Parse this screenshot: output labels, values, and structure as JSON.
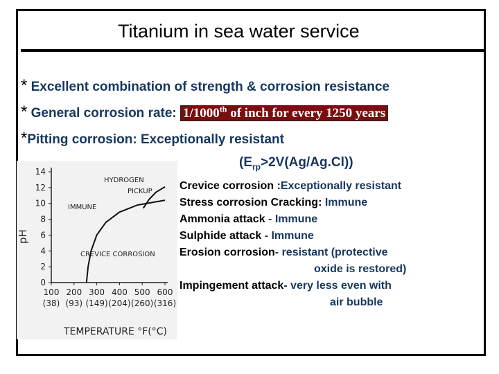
{
  "slide": {
    "title": "Titanium in sea water service",
    "bullets": [
      {
        "star": "*",
        "text": "Excellent  combination of strength & corrosion resistance"
      },
      {
        "star": "*",
        "text": "General corrosion rate:",
        "rate_main": "1/1000",
        "rate_sup": "th",
        "rate_rest": " of inch for every 1250 years"
      },
      {
        "star": "*",
        "text": "Pitting corrosion: Exceptionally resistant"
      }
    ],
    "erp": {
      "prefix": "(E",
      "sub": "rp",
      "suffix": ">2V(Ag/Ag.Cl))"
    },
    "properties": [
      {
        "key": "Crevice corrosion :",
        "value": "Exceptionally resistant"
      },
      {
        "key": "Stress corrosion Cracking:",
        "value": " Immune"
      },
      {
        "key": "Ammonia attack ",
        "value": " - Immune"
      },
      {
        "key": "Sulphide attack ",
        "value": " - Immune"
      },
      {
        "key": "Erosion corrosion",
        "value": "- resistant (protective"
      },
      {
        "key": "",
        "value": "oxide is restored)"
      },
      {
        "key": "Impingement attack",
        "value": "- very less even with"
      },
      {
        "key": "",
        "value": "air bubble"
      }
    ]
  },
  "chart_data": {
    "type": "line",
    "xlabel": "TEMPERATURE °F(°C)",
    "ylabel": "pH",
    "x_ticks_f": [
      "100",
      "200",
      "300",
      "400",
      "500",
      "600"
    ],
    "x_ticks_c": [
      "(38)",
      "(93)",
      "(149)",
      "(204)",
      "(260)",
      "(316)"
    ],
    "y_ticks": [
      "0",
      "2",
      "4",
      "6",
      "8",
      "10",
      "12",
      "14"
    ],
    "xlim": [
      100,
      600
    ],
    "ylim": [
      0,
      14
    ],
    "regions": [
      "HYDROGEN",
      "PICKUP",
      "IMMUNE",
      "CREVICE CORROSION"
    ],
    "series": [
      {
        "x": [
          255,
          262,
          275,
          300,
          340,
          400,
          480,
          600
        ],
        "y": [
          0,
          2,
          4,
          6,
          7.6,
          8.9,
          9.8,
          10.4
        ]
      },
      {
        "x": [
          505,
          530,
          560,
          600
        ],
        "y": [
          9.4,
          10.5,
          11.4,
          12.1
        ]
      }
    ]
  }
}
